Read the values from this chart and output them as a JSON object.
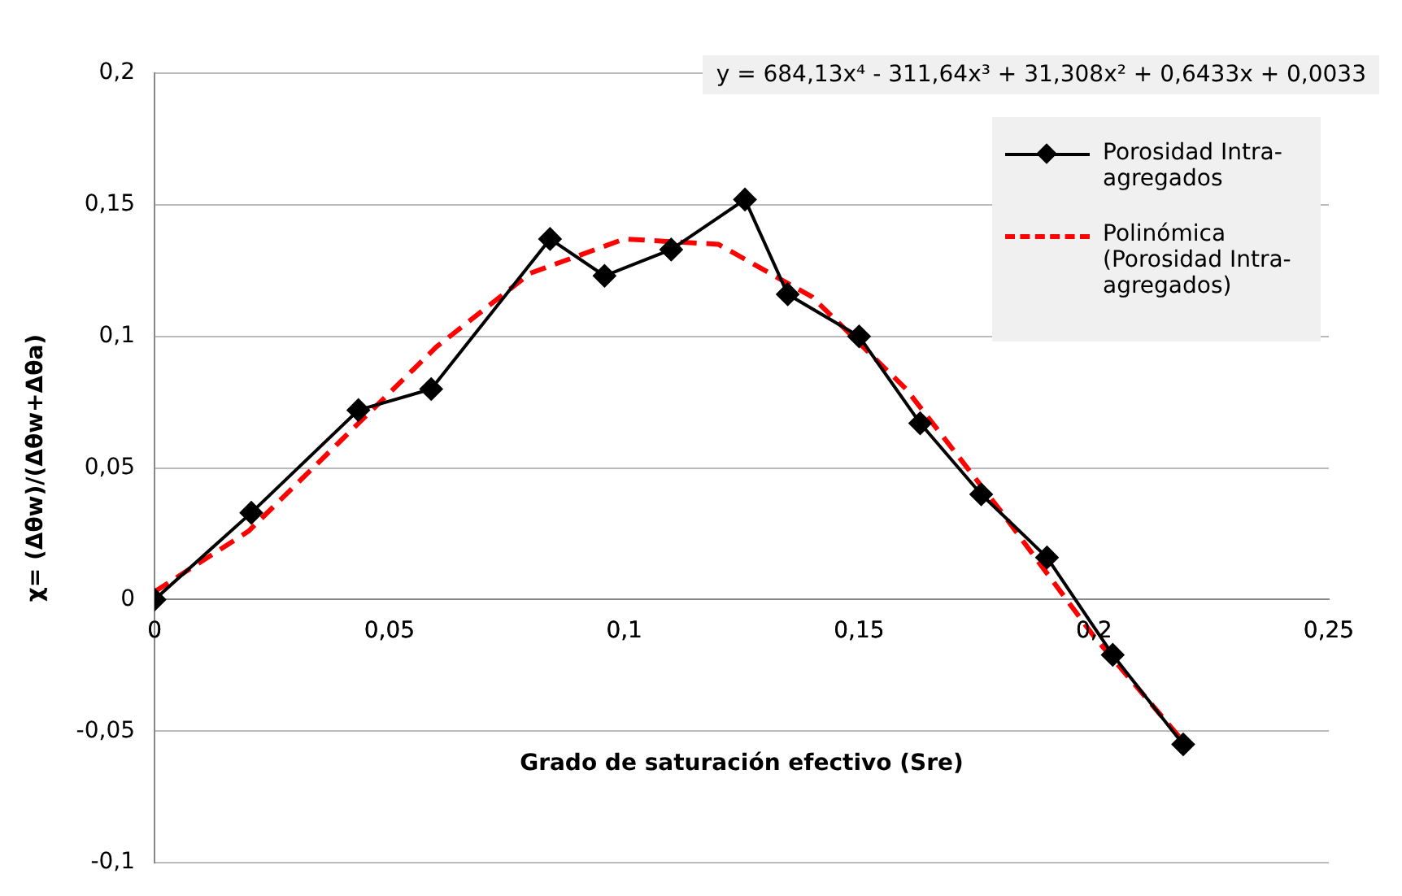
{
  "chart_data": {
    "type": "line",
    "xlabel": "Grado de saturación efectivo (Sre)",
    "ylabel": "χ= (Δθw)/(Δθw+Δθa)",
    "annotations": [
      "y = 684,13x⁴  - 311,64x³ + 31,308x² + 0,6433x  + 0,0033"
    ],
    "xlim": [
      0,
      0.25
    ],
    "xticks": [
      {
        "value": 0,
        "label": "0"
      },
      {
        "value": 0.05,
        "label": "0,05"
      },
      {
        "value": 0.1,
        "label": "0,1"
      },
      {
        "value": 0.15,
        "label": "0,15"
      },
      {
        "value": 0.2,
        "label": "0,2"
      },
      {
        "value": 0.25,
        "label": "0,25"
      }
    ],
    "ylim": [
      -0.1,
      0.2
    ],
    "yticks": [
      {
        "value": -0.1,
        "label": "-0,1"
      },
      {
        "value": -0.05,
        "label": "-0,05"
      },
      {
        "value": 0,
        "label": "0"
      },
      {
        "value": 0.05,
        "label": "0,05"
      },
      {
        "value": 0.1,
        "label": "0,1"
      },
      {
        "value": 0.15,
        "label": "0,15"
      },
      {
        "value": 0.2,
        "label": "0,2"
      }
    ],
    "grid": "y",
    "legend": "top right",
    "series": [
      {
        "name": "Porosidad Intra-agregados",
        "color": "#000000",
        "marker": "diamond",
        "line_style": "solid",
        "x": [
          0,
          0.0206,
          0.0434,
          0.0589,
          0.0842,
          0.0958,
          0.11,
          0.1257,
          0.1348,
          0.15,
          0.163,
          0.176,
          0.19,
          0.204,
          0.219
        ],
        "values": [
          0,
          0.033,
          0.072,
          0.08,
          0.137,
          0.123,
          0.133,
          0.152,
          0.116,
          0.1,
          0.067,
          0.04,
          0.016,
          -0.021,
          -0.055
        ]
      },
      {
        "name": "Polinómica (Porosidad Intra-agregados)",
        "color": "#ff0000",
        "marker": "none",
        "line_style": "dashed",
        "x": [
          0,
          0.02,
          0.04,
          0.06,
          0.08,
          0.1,
          0.12,
          0.14,
          0.16,
          0.18,
          0.2,
          0.22
        ],
        "values": [
          0.003,
          0.026,
          0.061,
          0.096,
          0.124,
          0.137,
          0.135,
          0.115,
          0.08,
          0.034,
          -0.014,
          -0.056
        ]
      }
    ]
  }
}
